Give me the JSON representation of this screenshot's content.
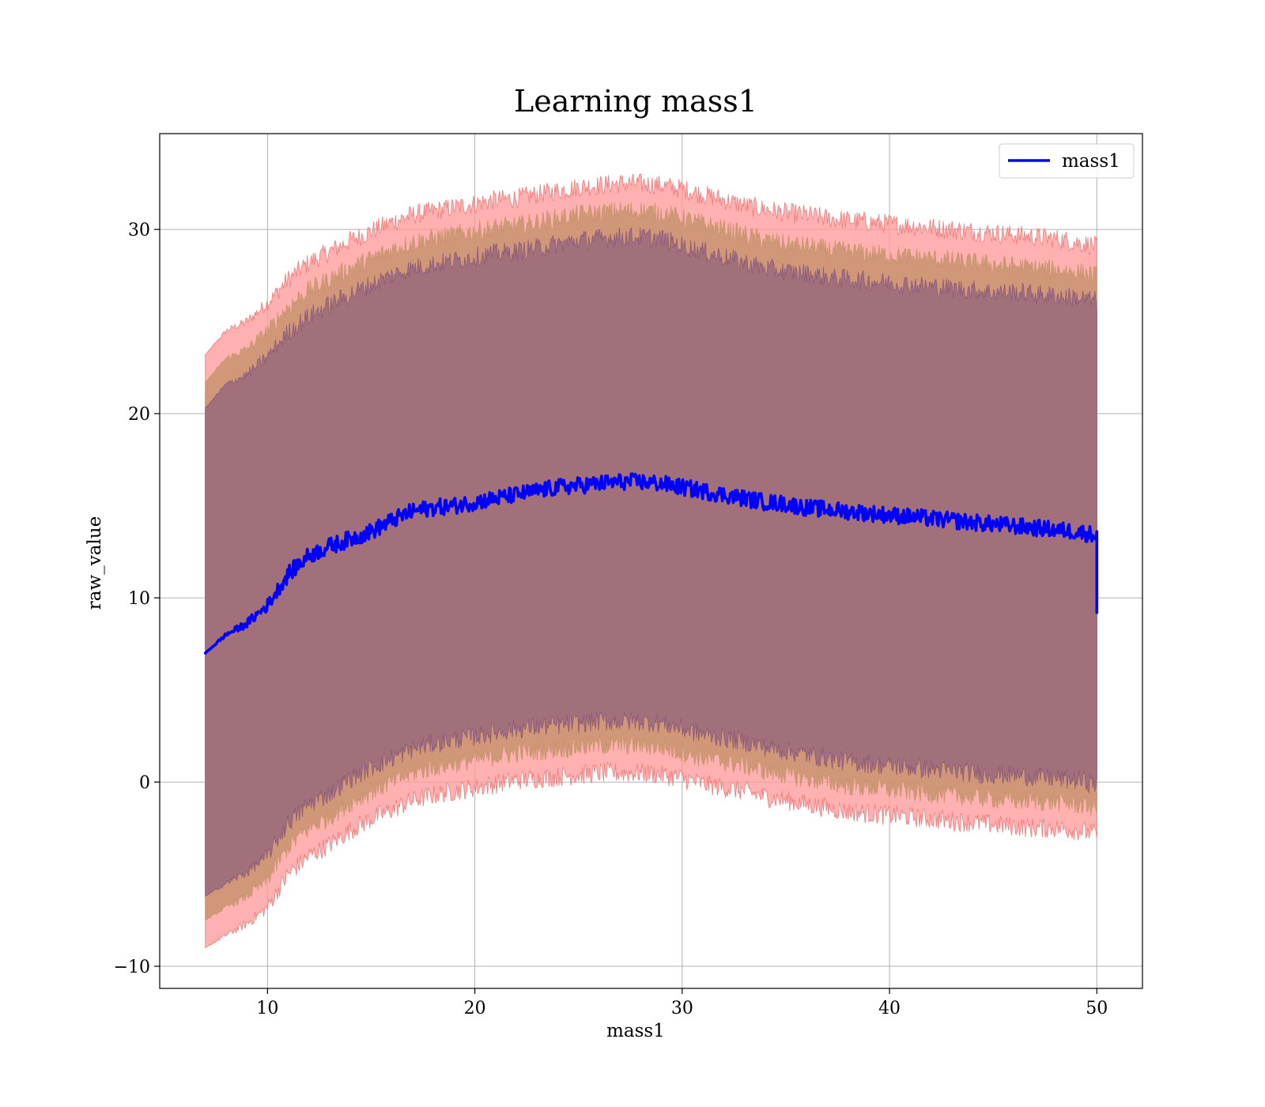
{
  "chart_data": {
    "type": "area",
    "title": "Learning mass1",
    "xlabel": "mass1",
    "ylabel": "raw_value",
    "xlim": [
      4.8,
      52.2
    ],
    "ylim": [
      -11.2,
      35.2
    ],
    "xticks": [
      10,
      20,
      30,
      40,
      50
    ],
    "yticks": [
      -10,
      0,
      10,
      20,
      30
    ],
    "xtick_labels": [
      "10",
      "20",
      "30",
      "40",
      "50"
    ],
    "ytick_labels": [
      "−10",
      "0",
      "10",
      "20",
      "30"
    ],
    "grid": true,
    "legend": {
      "position": "top-right",
      "entries": [
        "mass1"
      ]
    },
    "colors": {
      "line": "#0000ff",
      "outer_band": "#ff9a9a",
      "middle_band": "#c8946e",
      "inner_band": "#a2707a",
      "outer_band_edge": "#f27a7a",
      "inner_band_edge": "#8d5a7a"
    },
    "series": [
      {
        "name": "mass1",
        "x": [
          7,
          8,
          9,
          10,
          11,
          12,
          13,
          14,
          15,
          16,
          17,
          18,
          19,
          20,
          21,
          22,
          23,
          24,
          25,
          26,
          27,
          28,
          29,
          30,
          31,
          32,
          33,
          34,
          35,
          36,
          37,
          38,
          39,
          40,
          41,
          42,
          43,
          44,
          45,
          46,
          47,
          48,
          49,
          50
        ],
        "y": [
          7.0,
          8.0,
          8.6,
          9.6,
          11.3,
          12.3,
          12.8,
          13.2,
          13.6,
          14.2,
          14.7,
          14.9,
          15.0,
          15.2,
          15.4,
          15.6,
          15.8,
          16.0,
          16.1,
          16.2,
          16.3,
          16.3,
          16.2,
          16.0,
          15.8,
          15.6,
          15.4,
          15.2,
          15.1,
          14.9,
          14.8,
          14.7,
          14.6,
          14.5,
          14.4,
          14.3,
          14.2,
          14.1,
          14.0,
          13.9,
          13.8,
          13.7,
          13.6,
          13.4
        ]
      },
      {
        "name": "outer band",
        "upper": [
          23.2,
          24.5,
          25.0,
          26.0,
          27.3,
          28.2,
          28.8,
          29.4,
          29.9,
          30.4,
          30.8,
          31.0,
          31.2,
          31.4,
          31.6,
          31.7,
          31.9,
          32.1,
          32.3,
          32.4,
          32.5,
          32.5,
          32.4,
          32.2,
          31.9,
          31.6,
          31.3,
          31.1,
          30.9,
          30.8,
          30.6,
          30.5,
          30.4,
          30.3,
          30.2,
          30.1,
          30.0,
          29.9,
          29.8,
          29.7,
          29.6,
          29.5,
          29.3,
          29.1
        ],
        "lower": [
          -9.0,
          -8.3,
          -7.7,
          -6.8,
          -5.0,
          -4.0,
          -3.4,
          -2.6,
          -2.0,
          -1.5,
          -1.0,
          -0.7,
          -0.5,
          -0.3,
          -0.1,
          0.1,
          0.2,
          0.3,
          0.4,
          0.5,
          0.5,
          0.5,
          0.4,
          0.2,
          -0.1,
          -0.3,
          -0.5,
          -0.8,
          -1.0,
          -1.2,
          -1.4,
          -1.6,
          -1.7,
          -1.8,
          -1.9,
          -2.0,
          -2.1,
          -2.2,
          -2.3,
          -2.4,
          -2.5,
          -2.5,
          -2.6,
          -2.8
        ]
      },
      {
        "name": "middle band",
        "upper": [
          21.7,
          23.0,
          23.5,
          24.5,
          25.8,
          26.7,
          27.3,
          27.9,
          28.4,
          28.9,
          29.3,
          29.5,
          29.7,
          29.9,
          30.1,
          30.2,
          30.4,
          30.6,
          30.8,
          30.9,
          31.0,
          31.0,
          30.9,
          30.6,
          30.3,
          30.0,
          29.7,
          29.4,
          29.2,
          29.1,
          28.9,
          28.8,
          28.7,
          28.6,
          28.5,
          28.4,
          28.3,
          28.2,
          28.1,
          28.0,
          27.9,
          27.8,
          27.7,
          27.5
        ],
        "lower": [
          -7.5,
          -6.8,
          -6.2,
          -5.3,
          -3.5,
          -2.5,
          -1.9,
          -1.1,
          -0.5,
          0.0,
          0.5,
          0.8,
          1.0,
          1.2,
          1.4,
          1.6,
          1.7,
          1.8,
          1.9,
          2.0,
          2.0,
          2.0,
          1.9,
          1.6,
          1.3,
          1.1,
          0.9,
          0.6,
          0.4,
          0.2,
          0.0,
          -0.2,
          -0.3,
          -0.4,
          -0.5,
          -0.6,
          -0.7,
          -0.8,
          -0.9,
          -1.0,
          -1.0,
          -1.1,
          -1.2,
          -1.4
        ]
      },
      {
        "name": "inner band",
        "upper": [
          20.3,
          21.6,
          22.1,
          23.1,
          24.4,
          25.3,
          25.9,
          26.5,
          27.0,
          27.5,
          27.9,
          28.1,
          28.3,
          28.5,
          28.7,
          28.8,
          29.0,
          29.2,
          29.4,
          29.5,
          29.6,
          29.6,
          29.5,
          29.1,
          28.8,
          28.5,
          28.2,
          27.9,
          27.7,
          27.6,
          27.4,
          27.3,
          27.2,
          27.1,
          27.0,
          26.9,
          26.8,
          26.7,
          26.6,
          26.6,
          26.5,
          26.4,
          26.3,
          26.1
        ],
        "lower": [
          -6.2,
          -5.5,
          -4.9,
          -4.0,
          -2.2,
          -1.2,
          -0.6,
          0.2,
          0.8,
          1.3,
          1.8,
          2.1,
          2.3,
          2.5,
          2.7,
          2.9,
          3.0,
          3.1,
          3.2,
          3.3,
          3.3,
          3.3,
          3.2,
          2.9,
          2.6,
          2.4,
          2.2,
          1.9,
          1.7,
          1.5,
          1.3,
          1.1,
          1.0,
          0.9,
          0.8,
          0.7,
          0.6,
          0.5,
          0.4,
          0.4,
          0.3,
          0.2,
          0.1,
          -0.1
        ]
      }
    ]
  }
}
